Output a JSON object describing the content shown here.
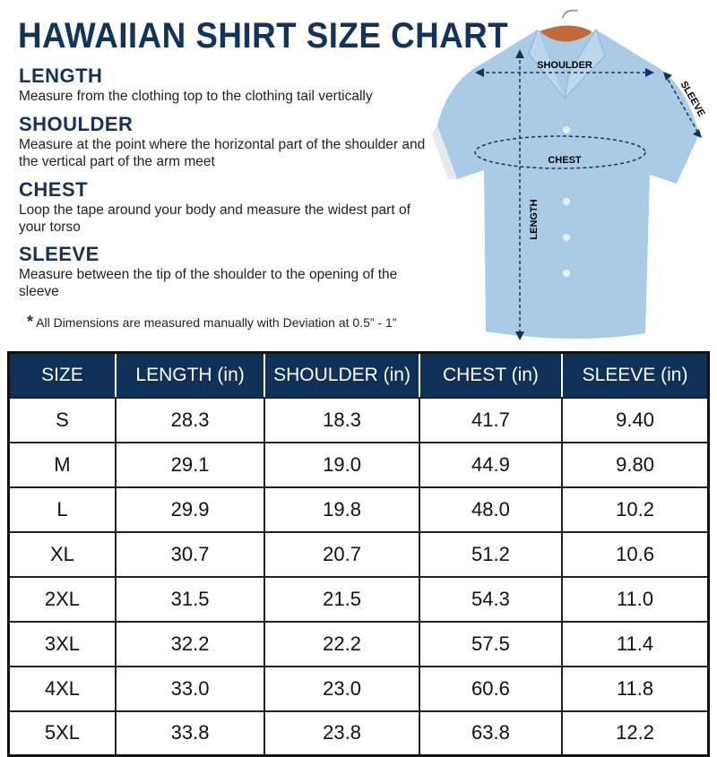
{
  "title": "HAWAIIAN SHIRT SIZE CHART",
  "sections": [
    {
      "heading": "LENGTH",
      "text": "Measure from the clothing top to the clothing tail vertically"
    },
    {
      "heading": "SHOULDER",
      "text": "Measure at the point where the horizontal part of the shoulder and the vertical part of the arm meet"
    },
    {
      "heading": "CHEST",
      "text": "Loop the tape around your body and measure the widest part of your torso"
    },
    {
      "heading": "SLEEVE",
      "text": "Measure between the tip of the shoulder to the opening of the sleeve"
    }
  ],
  "note": {
    "star": "*",
    "text": "All Dimensions are measured manually with Deviation at 0.5” - 1”"
  },
  "diagram": {
    "shoulder": "SHOULDER",
    "chest": "CHEST",
    "length": "LENGTH",
    "sleeve": "SLEEVE"
  },
  "colors": {
    "header": "#0f3158",
    "shirt": "#a9cbe6"
  },
  "table": {
    "headers": [
      "SIZE",
      "LENGTH (in)",
      "SHOULDER (in)",
      "CHEST (in)",
      "SLEEVE (in)"
    ],
    "rows": [
      [
        "S",
        "28.3",
        "18.3",
        "41.7",
        "9.40"
      ],
      [
        "M",
        "29.1",
        "19.0",
        "44.9",
        "9.80"
      ],
      [
        "L",
        "29.9",
        "19.8",
        "48.0",
        "10.2"
      ],
      [
        "XL",
        "30.7",
        "20.7",
        "51.2",
        "10.6"
      ],
      [
        "2XL",
        "31.5",
        "21.5",
        "54.3",
        "11.0"
      ],
      [
        "3XL",
        "32.2",
        "22.2",
        "57.5",
        "11.4"
      ],
      [
        "4XL",
        "33.0",
        "23.0",
        "60.6",
        "11.8"
      ],
      [
        "5XL",
        "33.8",
        "23.8",
        "63.8",
        "12.2"
      ]
    ]
  }
}
